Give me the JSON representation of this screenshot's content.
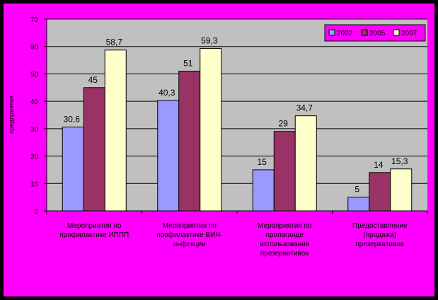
{
  "chart_data": {
    "type": "bar",
    "title": "",
    "xlabel": "",
    "ylabel": "предприятия",
    "ylim": [
      0,
      70
    ],
    "yticks": [
      0,
      10,
      20,
      30,
      40,
      50,
      60,
      70
    ],
    "grid": true,
    "legend_position": "top-right",
    "categories": [
      [
        "Мероприятия по",
        "профилактике ИППП"
      ],
      [
        "Мероприятия по",
        "профилактике ВИЧ-",
        "инфекции"
      ],
      [
        "Мероприятия по",
        "пропаганде",
        "использования",
        "презервативов"
      ],
      [
        "Предоставление",
        "(продажа)",
        "презервативов"
      ]
    ],
    "series": [
      {
        "name": "2002",
        "color": "#9999FF",
        "values": [
          30.6,
          40.3,
          15,
          5
        ],
        "labels": [
          "30,6",
          "40,3",
          "15",
          "5"
        ]
      },
      {
        "name": "2005",
        "color": "#993366",
        "values": [
          45,
          51,
          29,
          14
        ],
        "labels": [
          "45",
          "51",
          "29",
          "14"
        ]
      },
      {
        "name": "2007",
        "color": "#FFFFCC",
        "values": [
          58.7,
          59.3,
          34.7,
          15.3
        ],
        "labels": [
          "58,7",
          "59,3",
          "34,7",
          "15,3"
        ]
      }
    ]
  },
  "colors": {
    "border": "#FF00FF",
    "plot_background": "#C0C0C0",
    "chart_background": "#FF00FF"
  }
}
